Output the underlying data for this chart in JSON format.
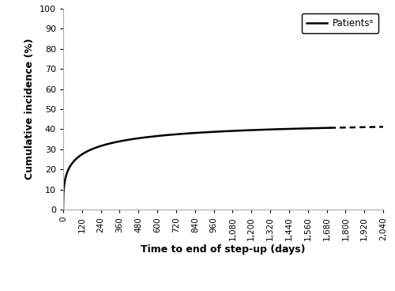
{
  "title": "",
  "xlabel": "Time to end of step-up (days)",
  "ylabel": "Cumulative incidence (%)",
  "legend_label": "Patientsᵃ",
  "xlim": [
    0,
    2040
  ],
  "ylim": [
    0,
    100
  ],
  "xticks": [
    0,
    120,
    240,
    360,
    480,
    600,
    720,
    840,
    960,
    1080,
    1200,
    1320,
    1440,
    1560,
    1680,
    1800,
    1920,
    2040
  ],
  "yticks": [
    0,
    10,
    20,
    30,
    40,
    50,
    60,
    70,
    80,
    90,
    100
  ],
  "solid_end_day": 1700,
  "curve_color": "#000000",
  "line_width": 1.8,
  "background_color": "#ffffff",
  "curve_params": {
    "scale": 120,
    "shape": 0.38,
    "max_val": 43.5
  }
}
